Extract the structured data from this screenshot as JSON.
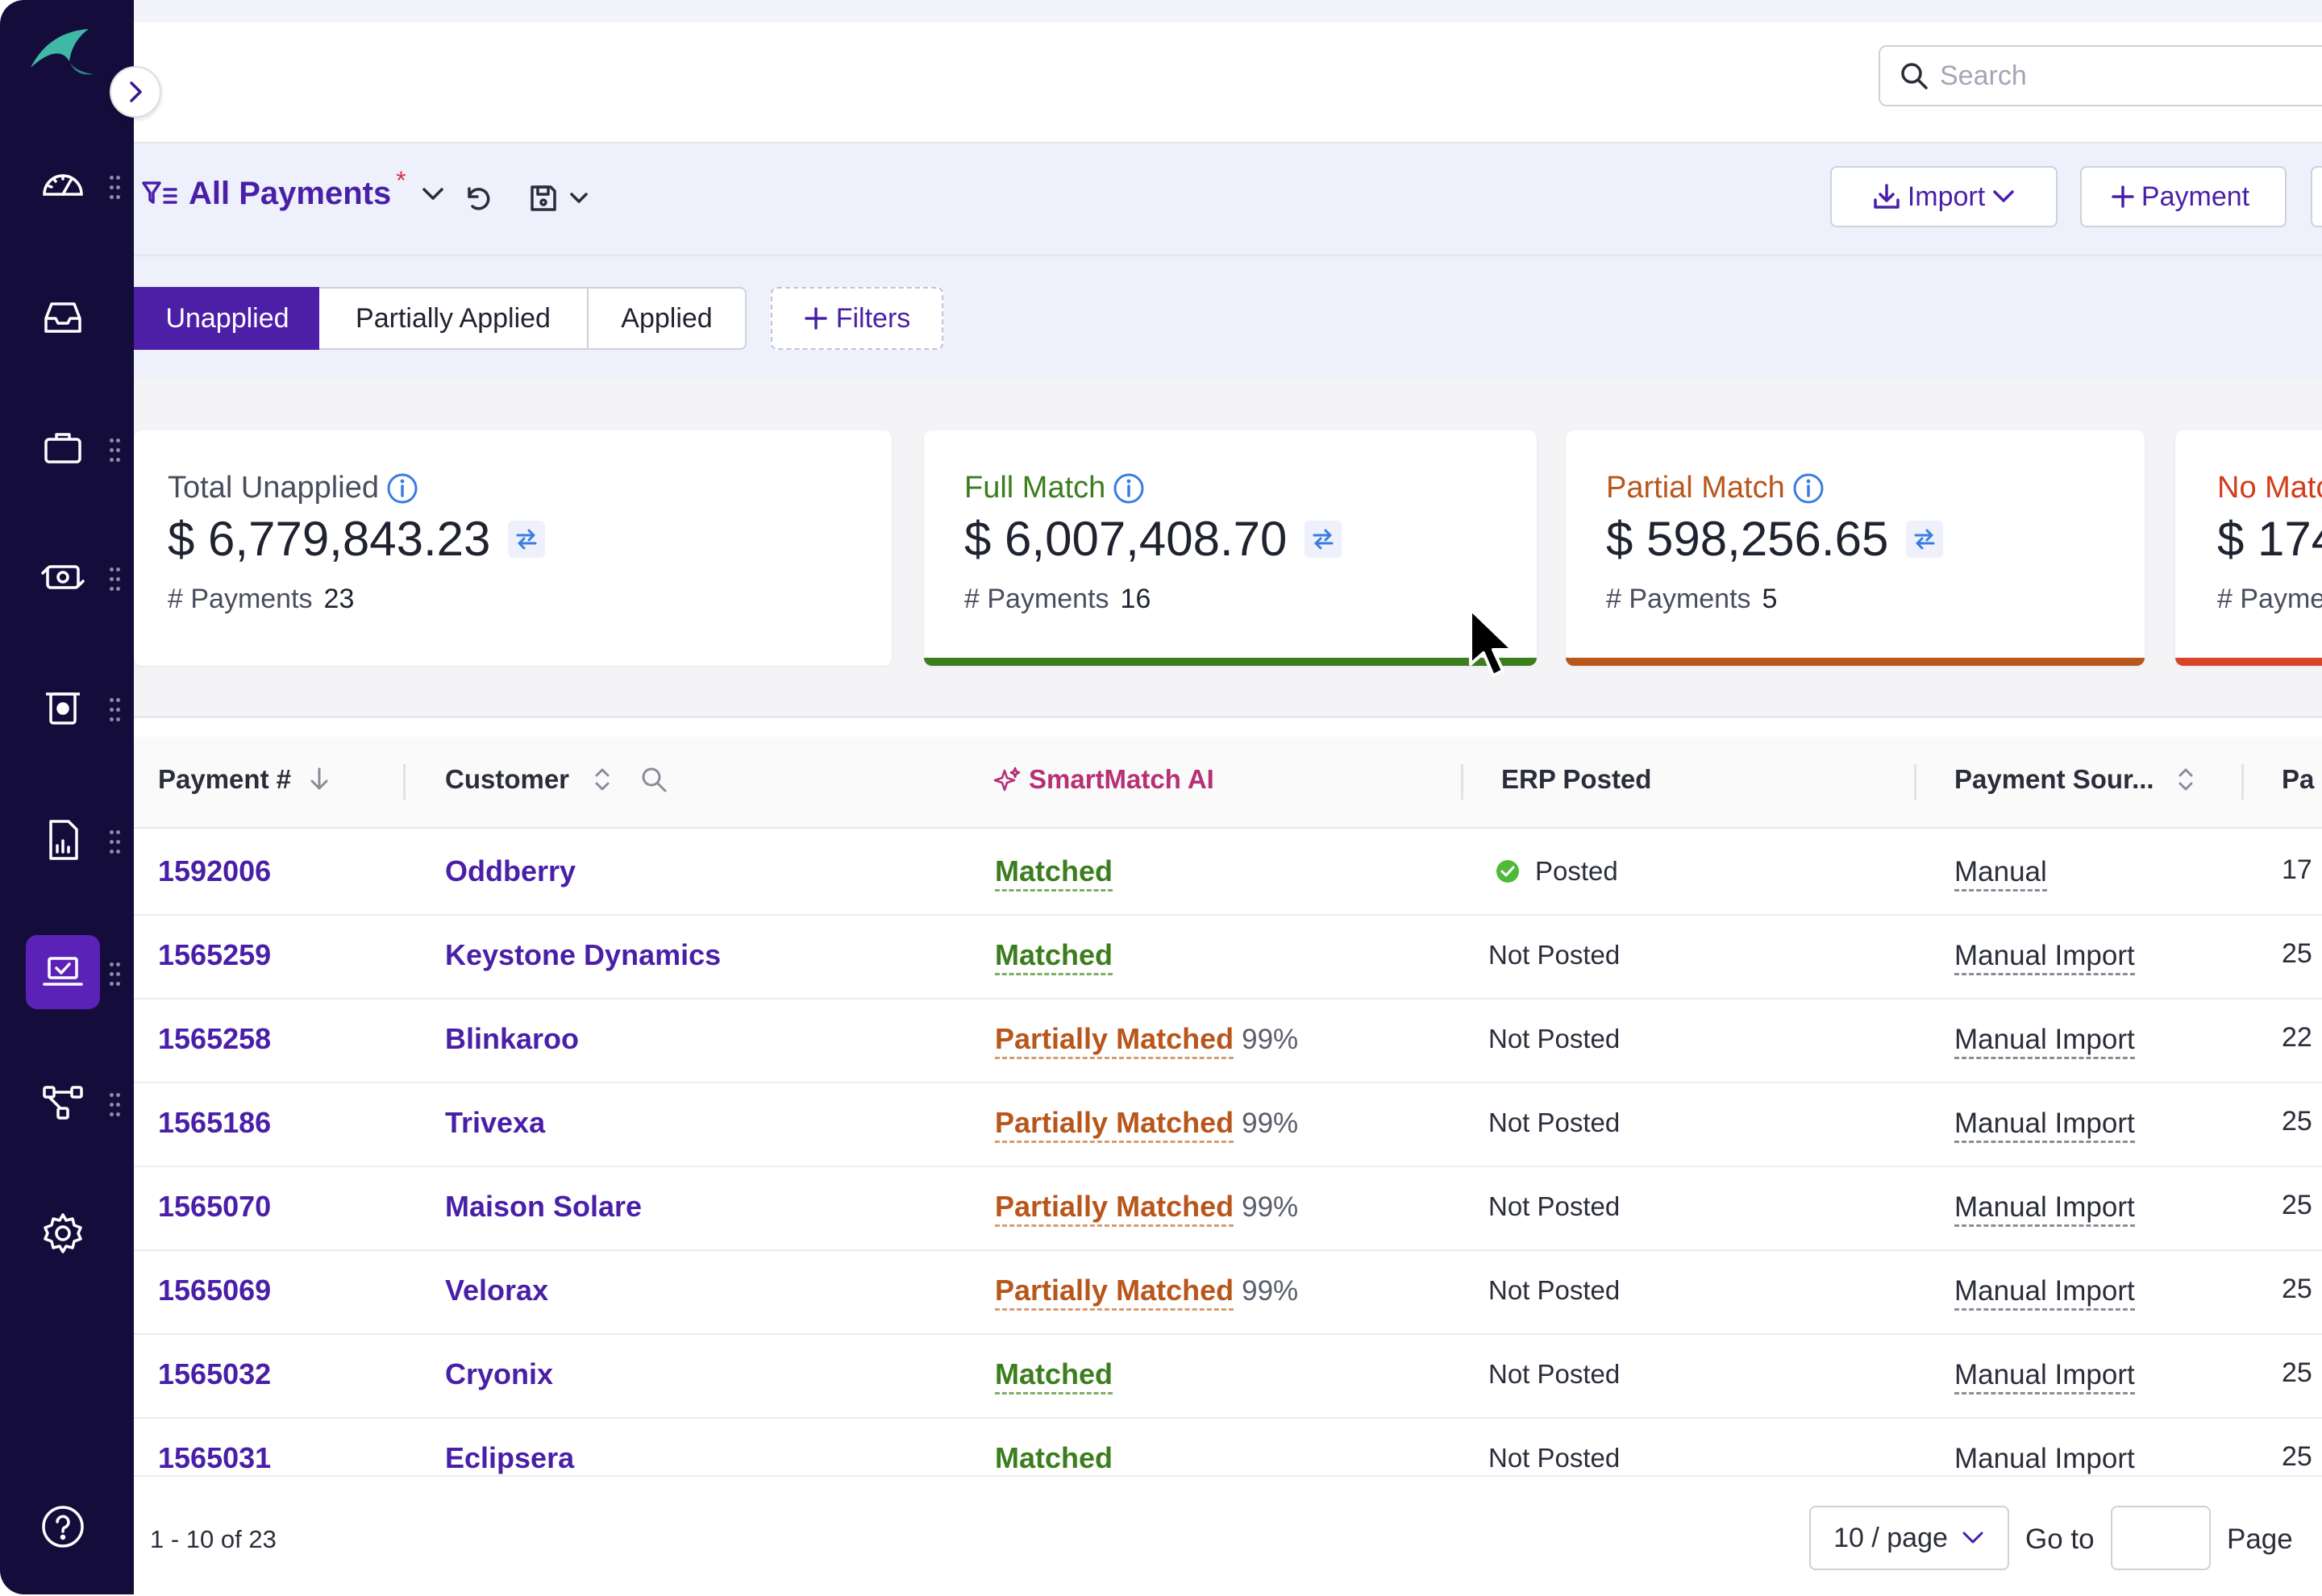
{
  "search": {
    "placeholder": "Search"
  },
  "view": {
    "title": "All Payments",
    "modified_marker": "*"
  },
  "toolbar": {
    "import_label": "Import",
    "add_payment_label": "Payment"
  },
  "tabs": [
    {
      "label": "Unapplied",
      "active": true
    },
    {
      "label": "Partially Applied",
      "active": false
    },
    {
      "label": "Applied",
      "active": false
    }
  ],
  "filters_label": "Filters",
  "cards": [
    {
      "label": "Total Unapplied",
      "amount": "$ 6,779,843.23",
      "count_label": "# Payments",
      "count": "23",
      "label_color": "#4a4d5c",
      "bar_color": null
    },
    {
      "label": "Full Match",
      "amount": "$ 6,007,408.70",
      "count_label": "# Payments",
      "count": "16",
      "label_color": "#3c7d1e",
      "bar_color": "#3c7d1e"
    },
    {
      "label": "Partial Match",
      "amount": "$ 598,256.65",
      "count_label": "# Payments",
      "count": "5",
      "label_color": "#b8561b",
      "bar_color": "#b8561b"
    },
    {
      "label": "No Matc",
      "amount": "$ 174",
      "count_label": "# Payme",
      "count": "",
      "label_color": "#d13c1a",
      "bar_color": "#d9432a"
    }
  ],
  "table": {
    "columns": [
      "Payment #",
      "Customer",
      "SmartMatch AI",
      "ERP Posted",
      "Payment Sour...",
      "Pa"
    ],
    "rows": [
      {
        "payment": "1592006",
        "customer": "Oddberry",
        "match": "Matched",
        "match_type": "full",
        "pct": "",
        "erp": "Posted",
        "source": "Manual",
        "amount": "17"
      },
      {
        "payment": "1565259",
        "customer": "Keystone Dynamics",
        "match": "Matched",
        "match_type": "full",
        "pct": "",
        "erp": "Not Posted",
        "source": "Manual Import",
        "amount": "25"
      },
      {
        "payment": "1565258",
        "customer": "Blinkaroo",
        "match": "Partially Matched",
        "match_type": "partial",
        "pct": "99%",
        "erp": "Not Posted",
        "source": "Manual Import",
        "amount": "22"
      },
      {
        "payment": "1565186",
        "customer": "Trivexa",
        "match": "Partially Matched",
        "match_type": "partial",
        "pct": "99%",
        "erp": "Not Posted",
        "source": "Manual Import",
        "amount": "25"
      },
      {
        "payment": "1565070",
        "customer": "Maison Solare",
        "match": "Partially Matched",
        "match_type": "partial",
        "pct": "99%",
        "erp": "Not Posted",
        "source": "Manual Import",
        "amount": "25"
      },
      {
        "payment": "1565069",
        "customer": "Velorax",
        "match": "Partially Matched",
        "match_type": "partial",
        "pct": "99%",
        "erp": "Not Posted",
        "source": "Manual Import",
        "amount": "25"
      },
      {
        "payment": "1565032",
        "customer": "Cryonix",
        "match": "Matched",
        "match_type": "full",
        "pct": "",
        "erp": "Not Posted",
        "source": "Manual Import",
        "amount": "25"
      },
      {
        "payment": "1565031",
        "customer": "Eclipsera",
        "match": "Matched",
        "match_type": "full",
        "pct": "",
        "erp": "Not Posted",
        "source": "Manual Import",
        "amount": "25"
      }
    ]
  },
  "pagination": {
    "range": "1 - 10 of 23",
    "page_size": "10 / page",
    "goto_label": "Go to",
    "page_label": "Page"
  },
  "colors": {
    "brand": "#4a1fa8",
    "sidebar": "#140c3a",
    "active_nav": "#5b22b8",
    "full_match": "#3c7d1e",
    "partial_match": "#b8561b",
    "no_match": "#d9432a"
  }
}
